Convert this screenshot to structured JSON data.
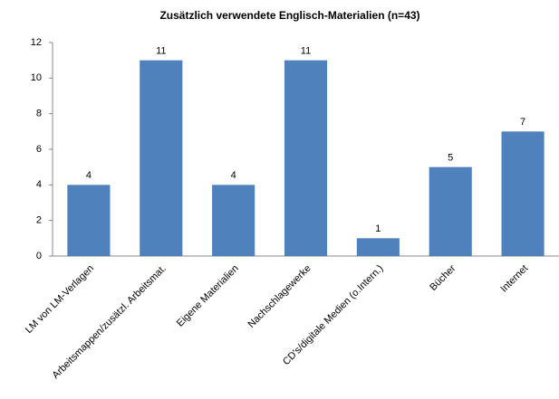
{
  "chart_data": {
    "type": "bar",
    "title": "Zusätzlich verwendete Englisch-Materialien (n=43)",
    "categories": [
      "LM von LM-Verlagen",
      "Arbeitsmappen/zusätzl. Arbeitsmat.",
      "Eigene Materialien",
      "Nachschlagewerke",
      "CD's/digitale Medien (o.Intern.)",
      "Bücher",
      "Internet"
    ],
    "values": [
      4,
      11,
      4,
      11,
      1,
      5,
      7
    ],
    "color": "#4f81bd",
    "ylim": [
      0,
      12
    ],
    "yticks": [
      0,
      2,
      4,
      6,
      8,
      10,
      12
    ],
    "grid": false
  }
}
